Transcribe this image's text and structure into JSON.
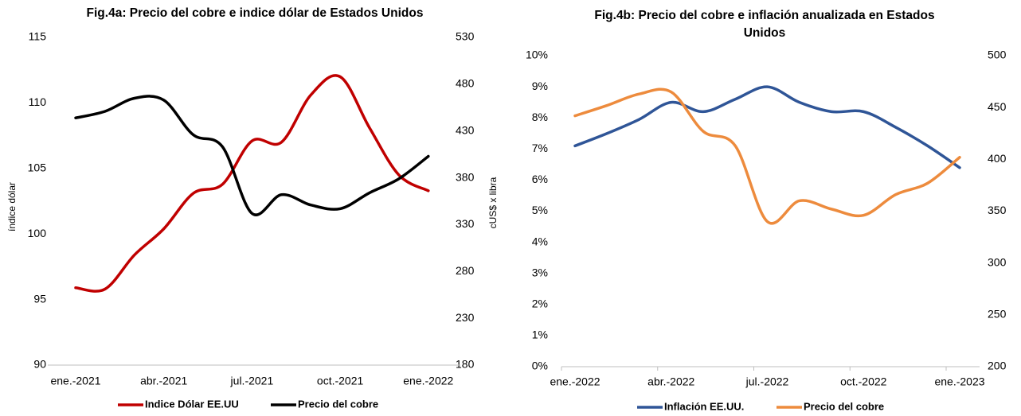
{
  "chart_data": [
    {
      "type": "line",
      "title": "Fig.4a: Precio del cobre e indice dólar de Estados Unidos",
      "y_label": "índice dólar",
      "y2_label": "cUS$ x libra",
      "categories": [
        "ene.-2021",
        null,
        null,
        "abr.-2021",
        null,
        null,
        "jul.-2021",
        null,
        null,
        "oct.-2021",
        null,
        null,
        "ene.-2022"
      ],
      "ylim": [
        90,
        115
      ],
      "yticks": [
        90,
        95,
        100,
        105,
        110,
        115
      ],
      "y2lim": [
        180,
        530
      ],
      "y2ticks": [
        180,
        230,
        280,
        330,
        380,
        430,
        480,
        530
      ],
      "grid": false,
      "series": [
        {
          "name": "Indice Dólar EE.UU",
          "color": "#c00000",
          "values": [
            95.9,
            95.8,
            98.4,
            100.4,
            103.1,
            103.8,
            107.1,
            107.0,
            110.6,
            112.0,
            108.1,
            104.5,
            103.3
          ]
        },
        {
          "name": "Precio del cobre",
          "color": "#000000",
          "axis": "y2",
          "values": [
            444,
            451,
            465,
            463,
            426,
            413,
            342,
            362,
            351,
            347,
            364,
            379,
            403
          ]
        }
      ]
    },
    {
      "type": "line",
      "title": "Fig.4b: Precio del cobre e inflación anualizada en Estados Unidos",
      "categories": [
        "ene.-2022",
        null,
        null,
        "abr.-2022",
        null,
        null,
        "jul.-2022",
        null,
        null,
        "oct.-2022",
        null,
        null,
        "ene.-2023"
      ],
      "ylim": [
        0,
        10
      ],
      "yticks": [
        {
          "value": 0,
          "label": "0%"
        },
        {
          "value": 1,
          "label": "1%"
        },
        {
          "value": 2,
          "label": "2%"
        },
        {
          "value": 3,
          "label": "3%"
        },
        {
          "value": 4,
          "label": "4%"
        },
        {
          "value": 5,
          "label": "5%"
        },
        {
          "value": 6,
          "label": "6%"
        },
        {
          "value": 7,
          "label": "7%"
        },
        {
          "value": 8,
          "label": "8%"
        },
        {
          "value": 9,
          "label": "9%"
        },
        {
          "value": 10,
          "label": "10%"
        }
      ],
      "y2lim": [
        200,
        500
      ],
      "y2ticks": [
        200,
        250,
        300,
        350,
        400,
        450,
        500
      ],
      "grid": false,
      "series": [
        {
          "name": "Inflación EE.UU.",
          "color": "#2f5597",
          "values": [
            7.1,
            7.5,
            7.95,
            8.5,
            8.2,
            8.6,
            9.0,
            8.5,
            8.2,
            8.2,
            7.7,
            7.1,
            6.4
          ]
        },
        {
          "name": "Precio del cobre",
          "color": "#ed8b3d",
          "axis": "y2",
          "values": [
            442,
            452,
            463,
            465,
            427,
            413,
            340,
            360,
            352,
            346,
            366,
            377,
            402
          ]
        }
      ]
    }
  ]
}
